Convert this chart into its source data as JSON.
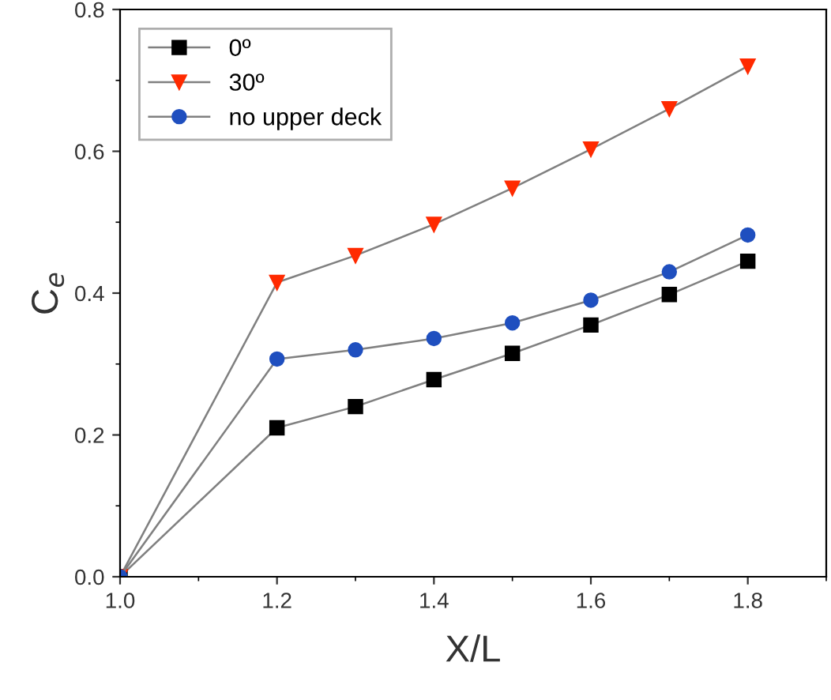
{
  "chart_data": {
    "type": "line",
    "xlabel": "X/L",
    "ylabel": "C$_{e}$",
    "x": [
      1.0,
      1.2,
      1.3,
      1.4,
      1.5,
      1.6,
      1.7,
      1.8
    ],
    "series": [
      {
        "name": "0º",
        "color": "#000000",
        "marker": "square",
        "values": [
          0,
          0.21,
          0.24,
          0.278,
          0.315,
          0.355,
          0.398,
          0.445
        ]
      },
      {
        "name": "30º",
        "color": "#ff2a00",
        "marker": "triangle",
        "values": [
          0,
          0.415,
          0.453,
          0.497,
          0.548,
          0.603,
          0.66,
          0.72
        ]
      },
      {
        "name": "no upper deck",
        "color": "#1f4fbf",
        "marker": "circle",
        "values": [
          0,
          0.307,
          0.32,
          0.336,
          0.358,
          0.39,
          0.43,
          0.482
        ]
      }
    ],
    "xlim": [
      1.0,
      1.9
    ],
    "ylim": [
      0,
      0.8
    ],
    "xticks": [
      {
        "value": 1,
        "label": "1.0"
      },
      1.2,
      1.4,
      1.6,
      1.8
    ],
    "yticks": [
      {
        "value": 0,
        "label": "0.0"
      },
      0.2,
      0.4,
      0.6,
      0.8
    ],
    "grid": false,
    "legend": "top left",
    "line_style": "solid"
  }
}
